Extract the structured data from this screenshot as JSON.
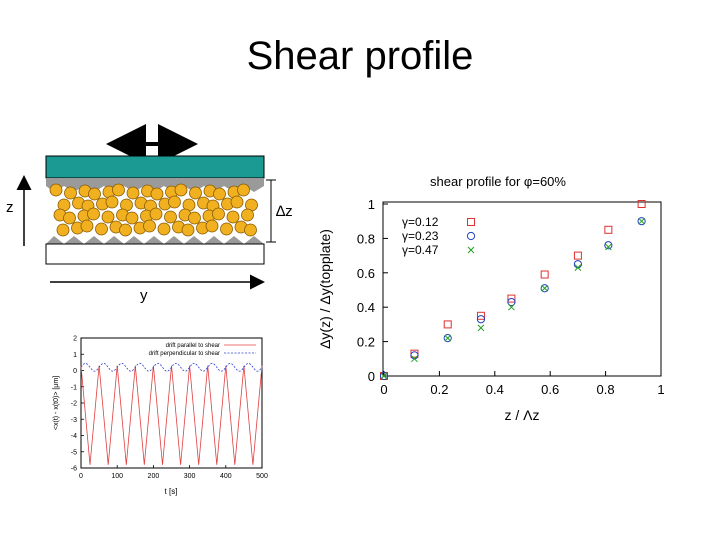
{
  "slide": {
    "title": "Shear profile"
  },
  "schematic": {
    "z_label": "z",
    "dz_label": "∆z",
    "y_label": "y",
    "colors": {
      "plate": "#1a9a92",
      "particle": "#f0b020",
      "particle_edge": "#8a5a00",
      "wall": "#9a9a9a"
    }
  },
  "chart_data": [
    {
      "type": "scatter",
      "title": "shear profile for φ=60%",
      "xlabel": "z / Λz",
      "ylabel": "Δy(z) / Δy(topplate)",
      "xlim": [
        0,
        1
      ],
      "ylim": [
        0,
        1
      ],
      "xticks": [
        "0",
        "0.2",
        "0.4",
        "0.6",
        "0.8",
        "1"
      ],
      "yticks": [
        "0",
        "0.2",
        "0.4",
        "0.6",
        "0.8",
        "1"
      ],
      "grid": false,
      "legend": "top-left",
      "series": [
        {
          "name": "γ=0.12",
          "marker": "square",
          "color": "#e03030",
          "x": [
            0,
            0.11,
            0.23,
            0.35,
            0.46,
            0.58,
            0.7,
            0.81,
            0.93
          ],
          "y": [
            0,
            0.13,
            0.3,
            0.35,
            0.45,
            0.59,
            0.7,
            0.85,
            1.0
          ]
        },
        {
          "name": "γ=0.23",
          "marker": "circle",
          "color": "#2040c0",
          "x": [
            0,
            0.11,
            0.23,
            0.35,
            0.46,
            0.58,
            0.7,
            0.81,
            0.93
          ],
          "y": [
            0,
            0.12,
            0.22,
            0.33,
            0.43,
            0.51,
            0.65,
            0.76,
            0.9
          ]
        },
        {
          "name": "γ=0.47",
          "marker": "cross",
          "color": "#20a020",
          "x": [
            0,
            0.11,
            0.23,
            0.35,
            0.46,
            0.58,
            0.7,
            0.81,
            0.93
          ],
          "y": [
            0,
            0.1,
            0.22,
            0.28,
            0.4,
            0.51,
            0.63,
            0.75,
            0.9
          ]
        }
      ]
    },
    {
      "type": "line",
      "title": "",
      "xlabel": "t [s]",
      "ylabel": "<x(t) - x(t0)> [μm]",
      "xlim": [
        0,
        500
      ],
      "ylim": [
        -6,
        2
      ],
      "xticks": [
        "0",
        "100",
        "200",
        "300",
        "400",
        "500"
      ],
      "yticks": [
        "2",
        "1",
        "0",
        "-1",
        "-2",
        "-3",
        "-4",
        "-5",
        "-6"
      ],
      "legend": "top-right",
      "series": [
        {
          "name": "drift parallel to shear",
          "color": "#e04040",
          "style": "solid",
          "period": 50,
          "max": 0.3,
          "min": -5.8
        },
        {
          "name": "drift perpendicular to shear",
          "color": "#3040d0",
          "style": "dashed",
          "level": 0.2,
          "amplitude": 0.25
        }
      ]
    }
  ]
}
